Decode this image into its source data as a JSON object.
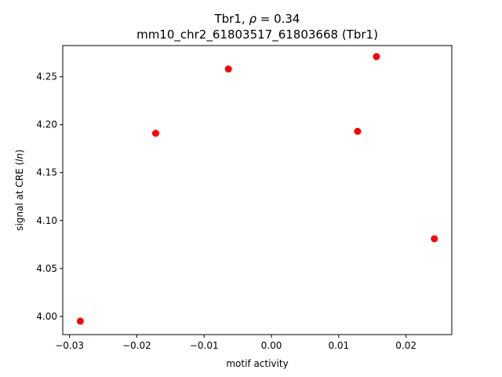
{
  "chart_data": {
    "type": "scatter",
    "title_line1_prefix": "Tbr1, ",
    "title_line1_rho": "ρ",
    "title_line1_suffix": " = 0.34",
    "title_line2": "mm10_chr2_61803517_61803668 (Tbr1)",
    "xlabel": "motif activity",
    "ylabel_prefix": "signal at CRE (",
    "ylabel_italic": "ln",
    "ylabel_suffix": ")",
    "xlim": [
      -0.031,
      0.0268
    ],
    "ylim": [
      3.981,
      4.2825
    ],
    "x_ticks": [
      -0.03,
      -0.02,
      -0.01,
      0.0,
      0.01,
      0.02
    ],
    "x_tick_labels": [
      "−0.03",
      "−0.02",
      "−0.01",
      "0.00",
      "0.01",
      "0.02"
    ],
    "y_ticks": [
      4.0,
      4.05,
      4.1,
      4.15,
      4.2,
      4.25
    ],
    "y_tick_labels": [
      "4.00",
      "4.05",
      "4.10",
      "4.15",
      "4.20",
      "4.25"
    ],
    "grid": false,
    "marker_color": "#ff0000",
    "points": [
      {
        "x": -0.0284,
        "y": 3.995
      },
      {
        "x": -0.0172,
        "y": 4.191
      },
      {
        "x": -0.0064,
        "y": 4.258
      },
      {
        "x": 0.0128,
        "y": 4.193
      },
      {
        "x": 0.0156,
        "y": 4.271
      },
      {
        "x": 0.0242,
        "y": 4.081
      }
    ]
  }
}
